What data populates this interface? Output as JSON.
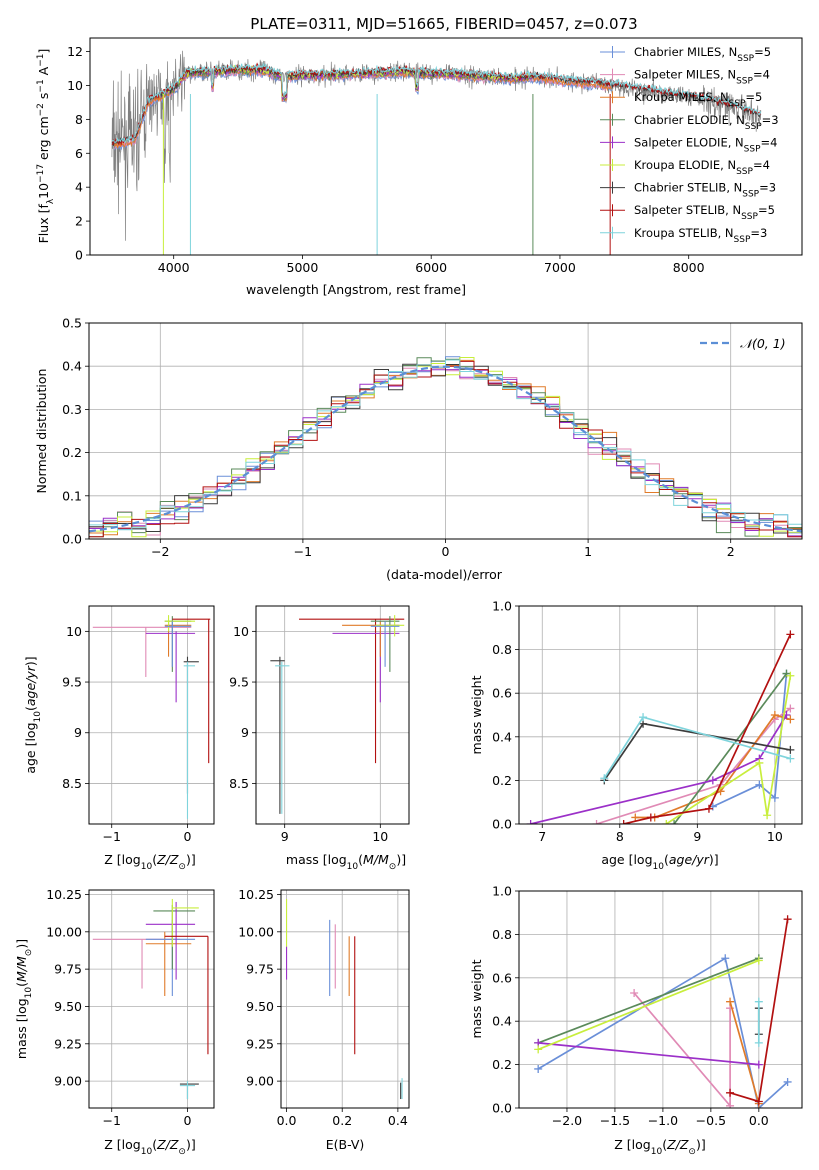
{
  "title": "PLATE=0311, MJD=51665, FIBERID=0457, z=0.073",
  "colors": {
    "chabrier_miles": "#6a8fd8",
    "salpeter_miles": "#e08ab5",
    "kroupa_miles": "#e07b2a",
    "chabrier_elodie": "#5a8a5a",
    "salpeter_elodie": "#9b30c8",
    "kroupa_elodie": "#c8ee3c",
    "chabrier_stelib": "#3c3c3c",
    "salpeter_stelib": "#b21010",
    "kroupa_stelib": "#7fd4dc",
    "data": "#808080",
    "gauss": "#5b8fd6",
    "grid": "#b0b0b0"
  },
  "chart_data": [
    {
      "id": "spectrum",
      "type": "line",
      "title": "PLATE=0311, MJD=51665, FIBERID=0457, z=0.073",
      "xlabel": "wavelength [Angstrom, rest frame]",
      "ylabel_parts": [
        "Flux [f",
        "λ",
        "10",
        "−17",
        " erg cm",
        "−2",
        " s",
        "−1",
        " A",
        "−1",
        "]"
      ],
      "xlim": [
        3350,
        8880
      ],
      "ylim": [
        0,
        12.8
      ],
      "xticks": [
        4000,
        5000,
        6000,
        7000,
        8000
      ],
      "yticks": [
        0,
        2,
        4,
        6,
        8,
        10,
        12
      ],
      "grid": false,
      "legend_position": "right",
      "legend": [
        {
          "label": "Chabrier MILES, N",
          "sub": "SSP",
          "tail": "=5",
          "color": "chabrier_miles"
        },
        {
          "label": "Salpeter MILES, N",
          "sub": "SSP",
          "tail": "=4",
          "color": "salpeter_miles"
        },
        {
          "label": "Kroupa MILES, N",
          "sub": "SSP",
          "tail": "=5",
          "color": "kroupa_miles"
        },
        {
          "label": "Chabrier ELODIE, N",
          "sub": "SSP",
          "tail": "=3",
          "color": "chabrier_elodie"
        },
        {
          "label": "Salpeter ELODIE, N",
          "sub": "SSP",
          "tail": "=4",
          "color": "salpeter_elodie"
        },
        {
          "label": "Kroupa ELODIE, N",
          "sub": "SSP",
          "tail": "=4",
          "color": "kroupa_elodie"
        },
        {
          "label": "Chabrier STELIB, N",
          "sub": "SSP",
          "tail": "=3",
          "color": "chabrier_stelib"
        },
        {
          "label": "Salpeter STELIB, N",
          "sub": "SSP",
          "tail": "=5",
          "color": "salpeter_stelib"
        },
        {
          "label": "Kroupa STELIB, N",
          "sub": "SSP",
          "tail": "=3",
          "color": "kroupa_stelib"
        }
      ],
      "continuum": [
        [
          3520,
          6.5
        ],
        [
          3600,
          6.6
        ],
        [
          3700,
          6.8
        ],
        [
          3800,
          9.0
        ],
        [
          3900,
          9.4
        ],
        [
          4000,
          9.8
        ],
        [
          4100,
          10.7
        ],
        [
          4300,
          10.8
        ],
        [
          4500,
          10.9
        ],
        [
          4700,
          10.9
        ],
        [
          4850,
          10.5
        ],
        [
          5000,
          10.6
        ],
        [
          5200,
          10.6
        ],
        [
          5500,
          10.7
        ],
        [
          5800,
          10.8
        ],
        [
          6000,
          10.7
        ],
        [
          6300,
          10.6
        ],
        [
          6600,
          10.4
        ],
        [
          6800,
          10.5
        ],
        [
          7000,
          10.3
        ],
        [
          7300,
          10.1
        ],
        [
          7600,
          9.8
        ],
        [
          7800,
          9.5
        ],
        [
          8000,
          9.3
        ],
        [
          8200,
          9.0
        ],
        [
          8400,
          8.6
        ],
        [
          8560,
          8.2
        ]
      ]
    },
    {
      "id": "residuals",
      "type": "histogram",
      "xlabel": "(data-model)/error",
      "ylabel": "Normed distribution",
      "xlim": [
        -2.5,
        2.5
      ],
      "ylim": [
        0,
        0.5
      ],
      "xticks": [
        -2,
        -1,
        0,
        1,
        2
      ],
      "yticks": [
        0.0,
        0.1,
        0.2,
        0.3,
        0.4,
        0.5
      ],
      "grid": true,
      "legend_position": "top-right",
      "legend_label": "𝒩(0, 1)",
      "bin_width": 0.1
    },
    {
      "id": "age_vs_z",
      "type": "error_bars",
      "xlabel": "Z [log10(Z/Z⊙)]",
      "ylabel": "age  [log10(age/yr)]",
      "xlim": [
        -1.3,
        0.35
      ],
      "ylim": [
        8.1,
        10.25
      ],
      "xticks": [
        -1,
        0
      ],
      "yticks": [
        8.5,
        9.0,
        9.5,
        10.0
      ]
    },
    {
      "id": "age_vs_mass",
      "type": "error_bars",
      "xlabel": "mass [log10(M/M⊙)]",
      "xlim": [
        8.7,
        10.3
      ],
      "ylim": [
        8.1,
        10.25
      ],
      "xticks": [
        9,
        10
      ],
      "yticks": [
        8.5,
        9.0,
        9.5,
        10.0
      ]
    },
    {
      "id": "massweight_vs_age",
      "type": "line",
      "xlabel": "age  [log10(age/yr)]",
      "ylabel": "mass weight",
      "xlim": [
        6.7,
        10.35
      ],
      "ylim": [
        0,
        1.0
      ],
      "xticks": [
        7,
        8,
        9,
        10
      ],
      "yticks": [
        0.0,
        0.2,
        0.4,
        0.6,
        0.8,
        1.0
      ],
      "grid": true,
      "series": [
        {
          "color": "chabrier_miles",
          "x": [
            9.2,
            9.8,
            10.0,
            10.15
          ],
          "y": [
            0.08,
            0.18,
            0.12,
            0.69
          ]
        },
        {
          "color": "salpeter_miles",
          "x": [
            7.7,
            9.3,
            10.0,
            10.2
          ],
          "y": [
            0.0,
            0.18,
            0.48,
            0.53
          ]
        },
        {
          "color": "kroupa_miles",
          "x": [
            8.2,
            8.45,
            9.3,
            10.0,
            10.2
          ],
          "y": [
            0.03,
            0.03,
            0.15,
            0.5,
            0.48
          ]
        },
        {
          "color": "chabrier_elodie",
          "x": [
            8.7,
            10.15
          ],
          "y": [
            0.0,
            0.69
          ]
        },
        {
          "color": "salpeter_elodie",
          "x": [
            6.85,
            9.2,
            9.8,
            10.15
          ],
          "y": [
            0.0,
            0.2,
            0.3,
            0.5
          ]
        },
        {
          "color": "kroupa_elodie",
          "x": [
            8.6,
            9.8,
            9.9,
            10.2
          ],
          "y": [
            0.0,
            0.28,
            0.04,
            0.68
          ]
        },
        {
          "color": "chabrier_stelib",
          "x": [
            7.8,
            8.3,
            10.2
          ],
          "y": [
            0.2,
            0.46,
            0.34
          ]
        },
        {
          "color": "salpeter_stelib",
          "x": [
            8.05,
            8.4,
            9.15,
            10.2
          ],
          "y": [
            0.0,
            0.03,
            0.07,
            0.87
          ]
        },
        {
          "color": "kroupa_stelib",
          "x": [
            7.8,
            8.3,
            10.2
          ],
          "y": [
            0.21,
            0.49,
            0.3
          ]
        }
      ]
    },
    {
      "id": "mass_vs_z",
      "type": "error_bars",
      "xlabel": "Z [log10(Z/Z⊙)]",
      "ylabel": "mass [log10(M/M⊙)]",
      "xlim": [
        -1.3,
        0.35
      ],
      "ylim": [
        8.82,
        10.28
      ],
      "xticks": [
        -1,
        0
      ],
      "yticks": [
        9.0,
        9.25,
        9.5,
        9.75,
        10.0,
        10.25
      ]
    },
    {
      "id": "mass_vs_ebv",
      "type": "error_bars",
      "xlabel": "E(B-V)",
      "xlim": [
        -0.02,
        0.44
      ],
      "ylim": [
        8.82,
        10.28
      ],
      "xticks": [
        0.0,
        0.2,
        0.4
      ],
      "yticks": [
        9.0,
        9.25,
        9.5,
        9.75,
        10.0,
        10.25
      ]
    },
    {
      "id": "massweight_vs_z",
      "type": "line",
      "xlabel": "Z [log10(Z/Z⊙)]",
      "ylabel": "mass weight",
      "xlim": [
        -2.5,
        0.45
      ],
      "ylim": [
        0,
        1.0
      ],
      "xticks": [
        -2.0,
        -1.5,
        -1.0,
        -0.5,
        0.0
      ],
      "yticks": [
        0.0,
        0.2,
        0.4,
        0.6,
        0.8,
        1.0
      ],
      "grid": true,
      "series": [
        {
          "color": "chabrier_miles",
          "x": [
            -2.3,
            -0.35,
            0.0,
            0.3
          ],
          "y": [
            0.18,
            0.69,
            0.0,
            0.12
          ]
        },
        {
          "color": "salpeter_miles",
          "x": [
            -1.3,
            -0.3,
            -0.3
          ],
          "y": [
            0.53,
            0.01,
            0.46
          ]
        },
        {
          "color": "kroupa_miles",
          "x": [
            -0.3,
            0.0
          ],
          "y": [
            0.49,
            0.02
          ]
        },
        {
          "color": "chabrier_elodie",
          "x": [
            -2.3,
            0.0
          ],
          "y": [
            0.3,
            0.69
          ]
        },
        {
          "color": "salpeter_elodie",
          "x": [
            -2.3,
            0.0
          ],
          "y": [
            0.3,
            0.2
          ]
        },
        {
          "color": "kroupa_elodie",
          "x": [
            -2.3,
            0.0
          ],
          "y": [
            0.27,
            0.68
          ]
        },
        {
          "color": "chabrier_stelib",
          "x": [
            0.0,
            0.0
          ],
          "y": [
            0.34,
            0.46
          ]
        },
        {
          "color": "salpeter_stelib",
          "x": [
            -0.3,
            0.0,
            0.3
          ],
          "y": [
            0.07,
            0.03,
            0.87
          ]
        },
        {
          "color": "kroupa_stelib",
          "x": [
            0.0,
            0.0
          ],
          "y": [
            0.3,
            0.49
          ]
        }
      ]
    }
  ]
}
